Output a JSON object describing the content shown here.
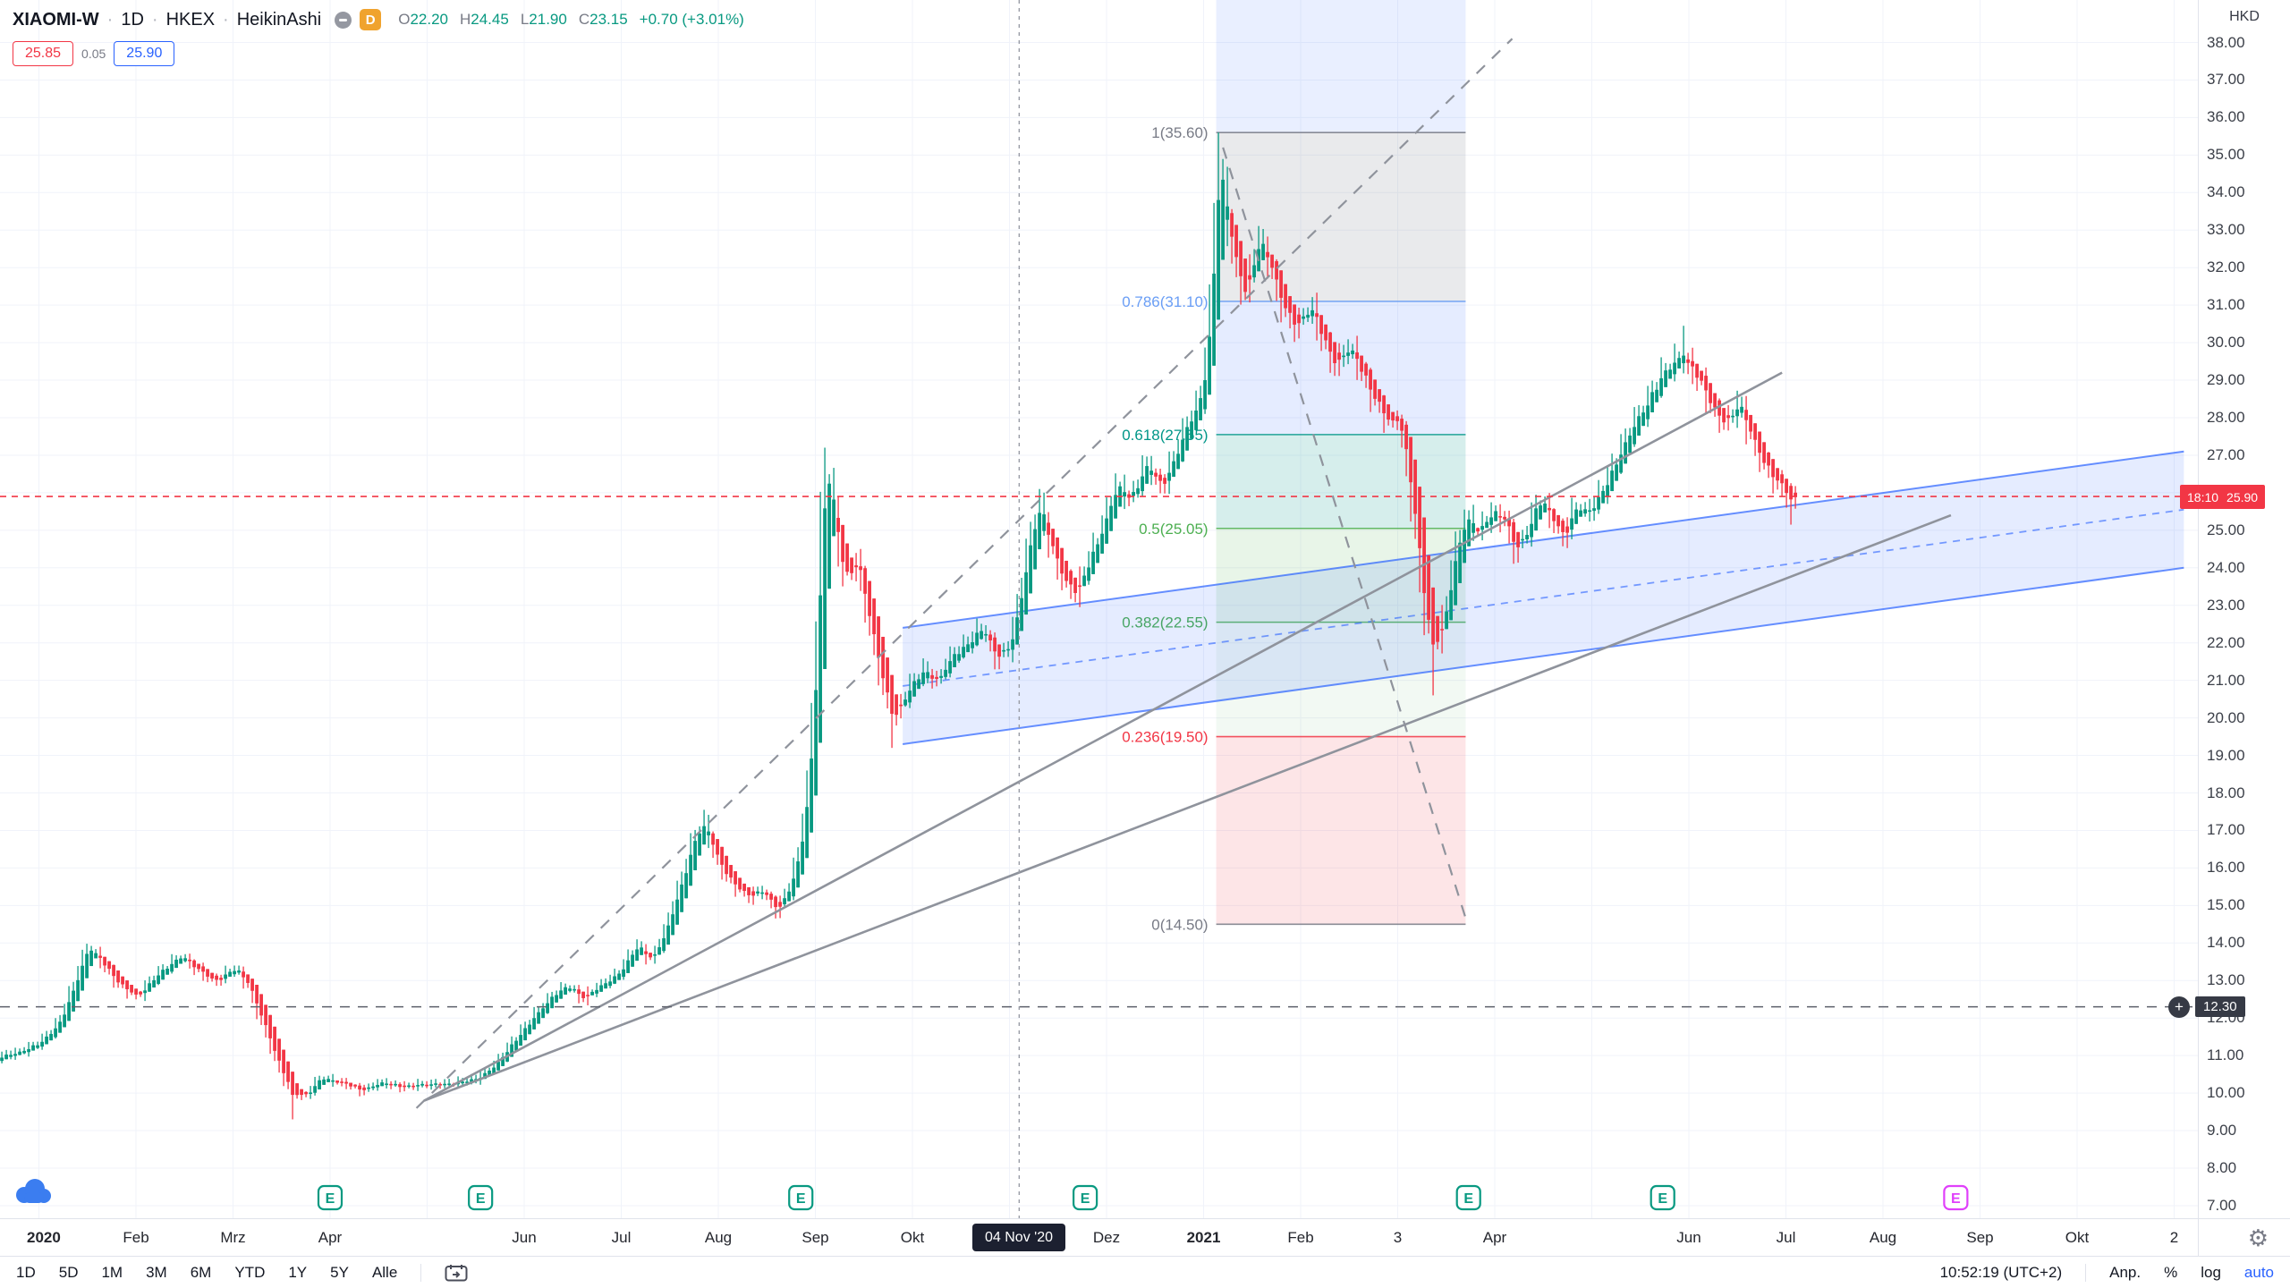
{
  "header": {
    "symbol": "XIAOMI-W",
    "sep": "·",
    "interval": "1D",
    "exchange": "HKEX",
    "chart_type": "HeikinAshi",
    "delayed_badge": "D",
    "ohlc": {
      "o_label": "O",
      "o": "22.20",
      "h_label": "H",
      "h": "24.45",
      "l_label": "L",
      "l": "21.90",
      "c_label": "C",
      "c": "23.15",
      "change": "+0.70 (+3.01%)"
    },
    "trade": {
      "sell": "25.85",
      "spread": "0.05",
      "buy": "25.90"
    }
  },
  "price_scale": {
    "currency": "HKD",
    "ticks": [
      "38.00",
      "37.00",
      "36.00",
      "35.00",
      "34.00",
      "33.00",
      "32.00",
      "31.00",
      "30.00",
      "29.00",
      "28.00",
      "27.00",
      "26.00",
      "25.00",
      "24.00",
      "23.00",
      "22.00",
      "21.00",
      "20.00",
      "19.00",
      "18.00",
      "17.00",
      "16.00",
      "15.00",
      "14.00",
      "13.00",
      "12.00",
      "11.00",
      "10.00",
      "9.00",
      "8.00",
      "7.00"
    ],
    "last": {
      "countdown": "18:10",
      "price": "25.90"
    },
    "alert_label": {
      "price": "12.30"
    }
  },
  "time_scale": {
    "labels": [
      {
        "label": "2020",
        "t": 0.05,
        "strong": true
      },
      {
        "label": "Feb",
        "t": 1
      },
      {
        "label": "Mrz",
        "t": 2
      },
      {
        "label": "Apr",
        "t": 3
      },
      {
        "label": "Jun",
        "t": 5
      },
      {
        "label": "Jul",
        "t": 6
      },
      {
        "label": "Aug",
        "t": 7
      },
      {
        "label": "Sep",
        "t": 8
      },
      {
        "label": "Okt",
        "t": 9
      },
      {
        "label": "Dez",
        "t": 11
      },
      {
        "label": "2021",
        "t": 12,
        "strong": true
      },
      {
        "label": "Feb",
        "t": 13
      },
      {
        "label": "3",
        "t": 14
      },
      {
        "label": "Apr",
        "t": 15
      },
      {
        "label": "Jun",
        "t": 17
      },
      {
        "label": "Jul",
        "t": 18
      },
      {
        "label": "Aug",
        "t": 19
      },
      {
        "label": "Sep",
        "t": 20
      },
      {
        "label": "Okt",
        "t": 21
      },
      {
        "label": "2",
        "t": 22
      }
    ],
    "crosshair_label": "04 Nov '20"
  },
  "toolbar": {
    "ranges": [
      "1D",
      "5D",
      "1M",
      "3M",
      "6M",
      "YTD",
      "1Y",
      "5Y",
      "Alle"
    ],
    "clock": "10:52:19 (UTC+2)",
    "adjust": "Anp.",
    "percent": "%",
    "log": "log",
    "auto": "auto"
  },
  "icons": {
    "gear": "⚙",
    "plus": "+"
  },
  "colors": {
    "up": "#089981",
    "down": "#f23645",
    "accent_blue": "#2962ff",
    "last_price_red": "#f23645",
    "alert_label_bg": "#363a45",
    "delayed_badge_orange": "#f0a32e",
    "earnings_teal": "#089981",
    "earnings_future_magenta": "#e040fb"
  },
  "chart_data": {
    "type": "candlestick",
    "subtype": "heikin-ashi",
    "symbol": "XIAOMI-W",
    "timeframe": "1D",
    "currency": "HKD",
    "x_unit": "months_since_2020_01",
    "y_range": [
      7,
      38
    ],
    "up_color": "#089981",
    "down_color": "#f23645",
    "bars_per_month": 21.7,
    "t_start": -0.52,
    "t_end": 18.1,
    "last_price": 25.9,
    "ohlc_at_crosshair": {
      "date": "04 Nov '20",
      "o": 22.2,
      "h": 24.45,
      "l": 21.9,
      "c": 23.15,
      "change": 0.7,
      "change_pct": 3.01
    },
    "price_path": [
      [
        -0.52,
        10.8
      ],
      [
        -0.35,
        11.0
      ],
      [
        -0.18,
        11.15
      ],
      [
        0,
        11.3
      ],
      [
        0.2,
        11.9
      ],
      [
        0.35,
        12.8
      ],
      [
        0.5,
        13.9
      ],
      [
        0.62,
        13.6
      ],
      [
        0.8,
        12.9
      ],
      [
        1,
        12.6
      ],
      [
        1.2,
        13.1
      ],
      [
        1.45,
        13.7
      ],
      [
        1.6,
        13.3
      ],
      [
        1.8,
        13.0
      ],
      [
        2,
        13.3
      ],
      [
        2.15,
        12.9
      ],
      [
        2.3,
        11.9
      ],
      [
        2.45,
        10.8
      ],
      [
        2.6,
        10.0
      ],
      [
        2.75,
        9.95
      ],
      [
        2.9,
        10.4
      ],
      [
        3.1,
        10.3
      ],
      [
        3.3,
        10.05
      ],
      [
        3.5,
        10.3
      ],
      [
        3.7,
        10.15
      ],
      [
        3.9,
        10.25
      ],
      [
        4.1,
        10.2
      ],
      [
        4.3,
        10.3
      ],
      [
        4.5,
        10.35
      ],
      [
        4.7,
        10.8
      ],
      [
        4.9,
        11.4
      ],
      [
        5.1,
        12.1
      ],
      [
        5.3,
        12.6
      ],
      [
        5.45,
        12.9
      ],
      [
        5.6,
        12.5
      ],
      [
        5.8,
        12.9
      ],
      [
        6,
        13.3
      ],
      [
        6.15,
        13.9
      ],
      [
        6.3,
        13.6
      ],
      [
        6.45,
        14.3
      ],
      [
        6.6,
        15.5
      ],
      [
        6.75,
        16.9
      ],
      [
        6.85,
        17.1
      ],
      [
        7,
        16.1
      ],
      [
        7.15,
        15.6
      ],
      [
        7.3,
        15.2
      ],
      [
        7.45,
        15.4
      ],
      [
        7.6,
        14.9
      ],
      [
        7.72,
        15.4
      ],
      [
        7.82,
        16.3
      ],
      [
        7.92,
        18.2
      ],
      [
        8,
        21.5
      ],
      [
        8.06,
        25.2
      ],
      [
        8.12,
        26.8
      ],
      [
        8.2,
        25.0
      ],
      [
        8.3,
        23.7
      ],
      [
        8.42,
        24.2
      ],
      [
        8.55,
        22.5
      ],
      [
        8.68,
        21.0
      ],
      [
        8.8,
        20.0
      ],
      [
        8.95,
        20.7
      ],
      [
        9.1,
        21.3
      ],
      [
        9.25,
        21.0
      ],
      [
        9.4,
        21.6
      ],
      [
        9.55,
        22.0
      ],
      [
        9.7,
        22.4
      ],
      [
        9.85,
        21.6
      ],
      [
        10,
        22.0
      ],
      [
        10.1,
        23.15
      ],
      [
        10.2,
        24.6
      ],
      [
        10.3,
        25.7
      ],
      [
        10.4,
        24.8
      ],
      [
        10.55,
        23.6
      ],
      [
        10.68,
        23.3
      ],
      [
        10.8,
        24.2
      ],
      [
        10.95,
        25.0
      ],
      [
        11.1,
        26.2
      ],
      [
        11.25,
        25.9
      ],
      [
        11.4,
        26.7
      ],
      [
        11.55,
        26.2
      ],
      [
        11.7,
        27.0
      ],
      [
        11.85,
        27.9
      ],
      [
        11.95,
        28.4
      ],
      [
        12.05,
        30.2
      ],
      [
        12.1,
        32.8
      ],
      [
        12.15,
        34.6
      ],
      [
        12.22,
        33.6
      ],
      [
        12.3,
        32.3
      ],
      [
        12.42,
        31.3
      ],
      [
        12.55,
        32.7
      ],
      [
        12.65,
        32.2
      ],
      [
        12.8,
        31.1
      ],
      [
        12.95,
        30.4
      ],
      [
        13.1,
        30.9
      ],
      [
        13.2,
        30.3
      ],
      [
        13.35,
        29.4
      ],
      [
        13.5,
        29.8
      ],
      [
        13.62,
        29.3
      ],
      [
        13.75,
        28.5
      ],
      [
        13.9,
        27.8
      ],
      [
        14,
        28.0
      ],
      [
        14.08,
        27.0
      ],
      [
        14.18,
        25.0
      ],
      [
        14.28,
        22.6
      ],
      [
        14.38,
        21.9
      ],
      [
        14.48,
        22.8
      ],
      [
        14.58,
        24.3
      ],
      [
        14.7,
        25.3
      ],
      [
        14.82,
        25.0
      ],
      [
        14.95,
        25.5
      ],
      [
        15.1,
        25.2
      ],
      [
        15.2,
        24.5
      ],
      [
        15.32,
        25.0
      ],
      [
        15.45,
        25.8
      ],
      [
        15.58,
        25.3
      ],
      [
        15.7,
        24.9
      ],
      [
        15.82,
        25.6
      ],
      [
        15.95,
        25.4
      ],
      [
        16.05,
        25.9
      ],
      [
        16.18,
        26.5
      ],
      [
        16.3,
        27.1
      ],
      [
        16.45,
        28.0
      ],
      [
        16.6,
        28.6
      ],
      [
        16.75,
        29.2
      ],
      [
        16.9,
        29.7
      ],
      [
        17,
        29.4
      ],
      [
        17.12,
        28.8
      ],
      [
        17.25,
        28.2
      ],
      [
        17.38,
        27.9
      ],
      [
        17.5,
        28.3
      ],
      [
        17.62,
        27.6
      ],
      [
        17.75,
        26.9
      ],
      [
        17.88,
        26.3
      ],
      [
        18,
        25.95
      ],
      [
        18.08,
        25.9
      ]
    ],
    "wick_overrides": [
      {
        "t": 2.62,
        "low": 9.3
      },
      {
        "t": 6.85,
        "high": 17.55
      },
      {
        "t": 8.12,
        "high": 27.2
      },
      {
        "t": 8.8,
        "low": 19.2
      },
      {
        "t": 10.32,
        "high": 26.1
      },
      {
        "t": 12.16,
        "high": 35.6
      },
      {
        "t": 14.35,
        "low": 20.6
      },
      {
        "t": 16.95,
        "high": 30.45
      },
      {
        "t": 18.05,
        "low": 25.15
      }
    ],
    "fib": {
      "t1": 12.13,
      "t2": 14.7,
      "levels": [
        {
          "label": "1(35.60)",
          "price": 35.6,
          "color": "#787b86"
        },
        {
          "label": "0.786(31.10)",
          "price": 31.1,
          "color": "#6a9ef5"
        },
        {
          "label": "0.618(27.55)",
          "price": 27.55,
          "color": "#009688"
        },
        {
          "label": "0.5(25.05)",
          "price": 25.05,
          "color": "#4caf50"
        },
        {
          "label": "0.382(22.55)",
          "price": 22.55,
          "color": "#4caf50"
        },
        {
          "label": "0.236(19.50)",
          "price": 19.5,
          "color": "#f23645"
        },
        {
          "label": "0(14.50)",
          "price": 14.5,
          "color": "#787b86"
        }
      ],
      "bands": [
        {
          "from": "top",
          "to": 35.6,
          "fill": "rgba(41,98,255,0.10)"
        },
        {
          "from": 35.6,
          "to": 31.1,
          "fill": "rgba(120,123,134,0.16)"
        },
        {
          "from": 31.1,
          "to": 27.55,
          "fill": "rgba(41,98,255,0.12)"
        },
        {
          "from": 27.55,
          "to": 25.05,
          "fill": "rgba(0,150,136,0.16)"
        },
        {
          "from": 25.05,
          "to": 22.55,
          "fill": "rgba(76,175,80,0.13)"
        },
        {
          "from": 22.55,
          "to": 19.5,
          "fill": "rgba(76,175,80,0.07)"
        },
        {
          "from": 19.5,
          "to": 14.5,
          "fill": "rgba(242,54,69,0.13)"
        }
      ]
    },
    "channel": {
      "t1": 8.9,
      "t2": 22.1,
      "top1": 22.4,
      "top2": 27.1,
      "bot1": 19.3,
      "bot2": 24.0,
      "color": "#2962ff",
      "fill": "rgba(41,98,255,0.12)"
    },
    "trendlines": [
      {
        "t1": 3.97,
        "p1": 9.8,
        "t2": 17.96,
        "p2": 29.2,
        "dash": false
      },
      {
        "t1": 3.97,
        "p1": 9.8,
        "t2": 19.7,
        "p2": 25.4,
        "dash": false
      },
      {
        "t1": 3.89,
        "p1": 9.6,
        "t2": 15.18,
        "p2": 38.1,
        "dash": true
      },
      {
        "t1": 12.2,
        "p1": 35.2,
        "t2": 14.72,
        "p2": 14.5,
        "dash": true
      }
    ],
    "hlines": [
      {
        "price": 25.9,
        "color": "#f23645",
        "dash": "7,6"
      },
      {
        "price": 12.3,
        "color": "#5d606b",
        "dash": "11,9"
      }
    ],
    "vline_t": 10.1,
    "earnings_markers": {
      "letter": "E",
      "teal_t": [
        3.0,
        4.55,
        7.85,
        10.78,
        14.73,
        16.73
      ],
      "magenta_t": [
        19.75
      ]
    }
  }
}
